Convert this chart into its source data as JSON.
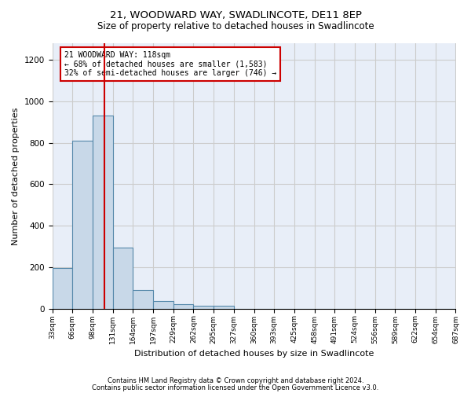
{
  "title1": "21, WOODWARD WAY, SWADLINCOTE, DE11 8EP",
  "title2": "Size of property relative to detached houses in Swadlincote",
  "xlabel": "Distribution of detached houses by size in Swadlincote",
  "ylabel": "Number of detached properties",
  "footer1": "Contains HM Land Registry data © Crown copyright and database right 2024.",
  "footer2": "Contains public sector information licensed under the Open Government Licence v3.0.",
  "annotation_title": "21 WOODWARD WAY: 118sqm",
  "annotation_line1": "← 68% of detached houses are smaller (1,583)",
  "annotation_line2": "32% of semi-detached houses are larger (746) →",
  "property_size": 118,
  "bar_color": "#c8d8e8",
  "bar_edge_color": "#5588aa",
  "vline_color": "#cc0000",
  "annotation_box_color": "#cc0000",
  "grid_color": "#cccccc",
  "background_color": "#e8eef8",
  "bin_edges": [
    33,
    66,
    99,
    132,
    165,
    198,
    231,
    264,
    297,
    330,
    363,
    396,
    429,
    462,
    495,
    528,
    561,
    594,
    627,
    660,
    693
  ],
  "bin_labels": [
    "33sqm",
    "66sqm",
    "98sqm",
    "131sqm",
    "164sqm",
    "197sqm",
    "229sqm",
    "262sqm",
    "295sqm",
    "327sqm",
    "360sqm",
    "393sqm",
    "425sqm",
    "458sqm",
    "491sqm",
    "524sqm",
    "556sqm",
    "589sqm",
    "622sqm",
    "654sqm",
    "687sqm"
  ],
  "values": [
    195,
    810,
    930,
    295,
    88,
    38,
    20,
    15,
    13,
    0,
    0,
    0,
    0,
    0,
    0,
    0,
    0,
    0,
    0,
    0
  ],
  "ylim": [
    0,
    1280
  ],
  "yticks": [
    0,
    200,
    400,
    600,
    800,
    1000,
    1200
  ]
}
